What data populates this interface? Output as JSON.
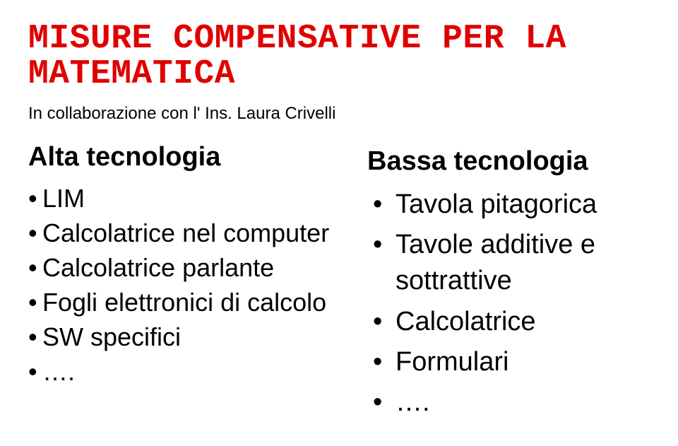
{
  "title": "MISURE COMPENSATIVE PER LA MATEMATICA",
  "subtitle": "In collaborazione con l' Ins. Laura Crivelli",
  "left": {
    "heading": "Alta tecnologia",
    "items": [
      "LIM",
      "Calcolatrice nel computer",
      "Calcolatrice parlante",
      " Fogli elettronici di calcolo",
      "SW specifici",
      "…."
    ]
  },
  "right": {
    "heading": "Bassa tecnologia",
    "items": [
      "Tavola pitagorica",
      "Tavole additive e sottrattive",
      "Calcolatrice",
      "Formulari",
      "…."
    ]
  }
}
